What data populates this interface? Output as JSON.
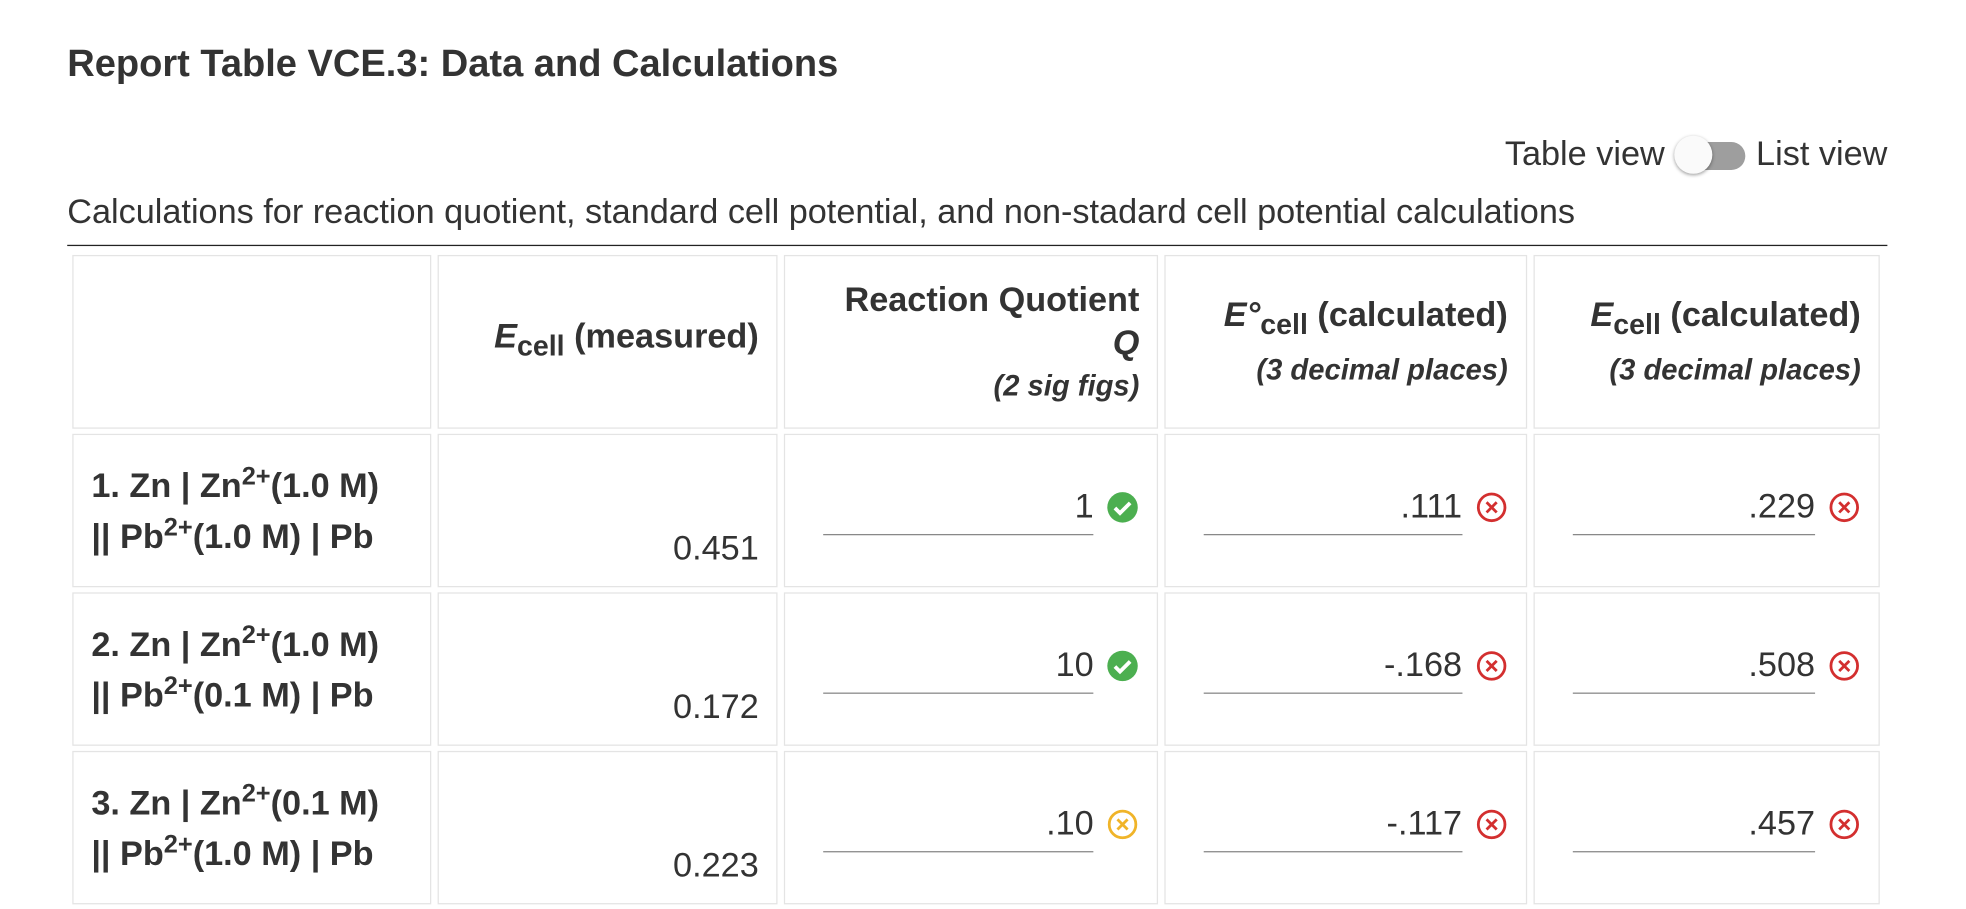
{
  "title": "Report Table VCE.3: Data and Calculations",
  "toggle": {
    "left_label": "Table view",
    "right_label": "List view"
  },
  "table": {
    "caption": "Calculations for reaction quotient, standard cell potential, and non-stadard cell potential calculations",
    "headers": [
      {
        "symbol": "E",
        "subscript": "cell",
        "text": "(measured)"
      },
      {
        "text": "Reaction Quotient",
        "symbol": "Q",
        "note": "(2 sig figs)"
      },
      {
        "symbol": "E°",
        "subscript": "cell",
        "text": "(calculated)",
        "note": "(3 decimal places)"
      },
      {
        "symbol": "E",
        "subscript": "cell",
        "text": "(calculated)",
        "note": "(3 decimal places)"
      }
    ],
    "rows": [
      {
        "label": [
          "1. Zn | Zn",
          "2+",
          "(1.0 M)",
          "|| Pb",
          "2+",
          "(1.0 M) | Pb"
        ],
        "measured": "0.451",
        "inputs": [
          {
            "value": "1",
            "status": "correct"
          },
          {
            "value": ".111",
            "status": "incorrect"
          },
          {
            "value": ".229",
            "status": "incorrect"
          }
        ]
      },
      {
        "label": [
          "2. Zn | Zn",
          "2+",
          "(1.0 M)",
          "|| Pb",
          "2+",
          "(0.1 M) | Pb"
        ],
        "measured": "0.172",
        "inputs": [
          {
            "value": "10",
            "status": "correct"
          },
          {
            "value": "-.168",
            "status": "incorrect"
          },
          {
            "value": ".508",
            "status": "incorrect"
          }
        ]
      },
      {
        "label": [
          "3. Zn | Zn",
          "2+",
          "(0.1 M)",
          "|| Pb",
          "2+",
          "(1.0 M) | Pb"
        ],
        "measured": "0.223",
        "inputs": [
          {
            "value": ".10",
            "status": "partial"
          },
          {
            "value": "-.117",
            "status": "incorrect"
          },
          {
            "value": ".457",
            "status": "incorrect"
          }
        ]
      }
    ]
  }
}
